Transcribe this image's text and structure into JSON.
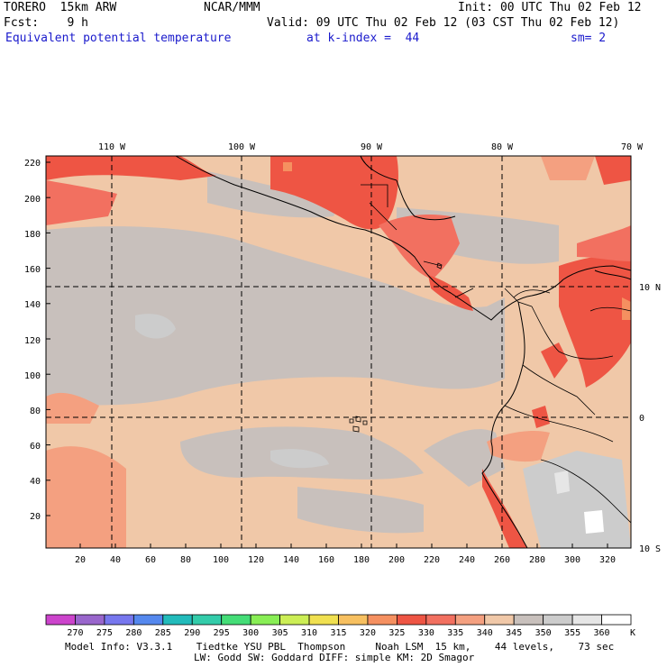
{
  "header": {
    "model": "TORERO  15km ARW",
    "center": "NCAR/MMM",
    "init": "Init: 00 UTC Thu 02 Feb 12",
    "fcst": "Fcst:    9 h",
    "valid": "Valid: 09 UTC Thu 02 Feb 12 (03 CST Thu 02 Feb 12)",
    "field": "Equivalent potential temperature",
    "level": "at k-index =  44",
    "smooth": "sm= 2"
  },
  "map": {
    "lon_labels": [
      "110 W",
      "100 W",
      "90 W",
      "80 W",
      "70 W"
    ],
    "lat_labels": [
      "10 N",
      "0",
      "10 S"
    ],
    "y_ticks": [
      "220",
      "200",
      "180",
      "160",
      "140",
      "120",
      "100",
      "80",
      "60",
      "40",
      "20"
    ],
    "x_ticks": [
      "20",
      "40",
      "60",
      "80",
      "100",
      "120",
      "140",
      "160",
      "180",
      "200",
      "220",
      "240",
      "260",
      "280",
      "300",
      "320"
    ]
  },
  "colorbar": {
    "labels": [
      "270",
      "275",
      "280",
      "285",
      "290",
      "295",
      "300",
      "305",
      "310",
      "315",
      "320",
      "325",
      "330",
      "335",
      "340",
      "345",
      "350",
      "355",
      "360"
    ],
    "unit": "K",
    "colors": [
      "#cc44cc",
      "#9966cc",
      "#7777ee",
      "#5588ee",
      "#22bbbb",
      "#33ccaa",
      "#44dd77",
      "#88ee55",
      "#ccee55",
      "#f0e050",
      "#f7c060",
      "#f59060",
      "#ee5544",
      "#f27060",
      "#f4a080",
      "#f0c8a8",
      "#c8c0bc",
      "#cccccc",
      "#e6e6e6",
      "#ffffff"
    ]
  },
  "footer": {
    "line1": "Model Info: V3.3.1    Tiedtke YSU PBL  Thompson     Noah LSM  15 km,    44 levels,    73 sec",
    "line2": "LW: Godd SW: Goddard DIFF: simple KM: 2D Smagor"
  }
}
